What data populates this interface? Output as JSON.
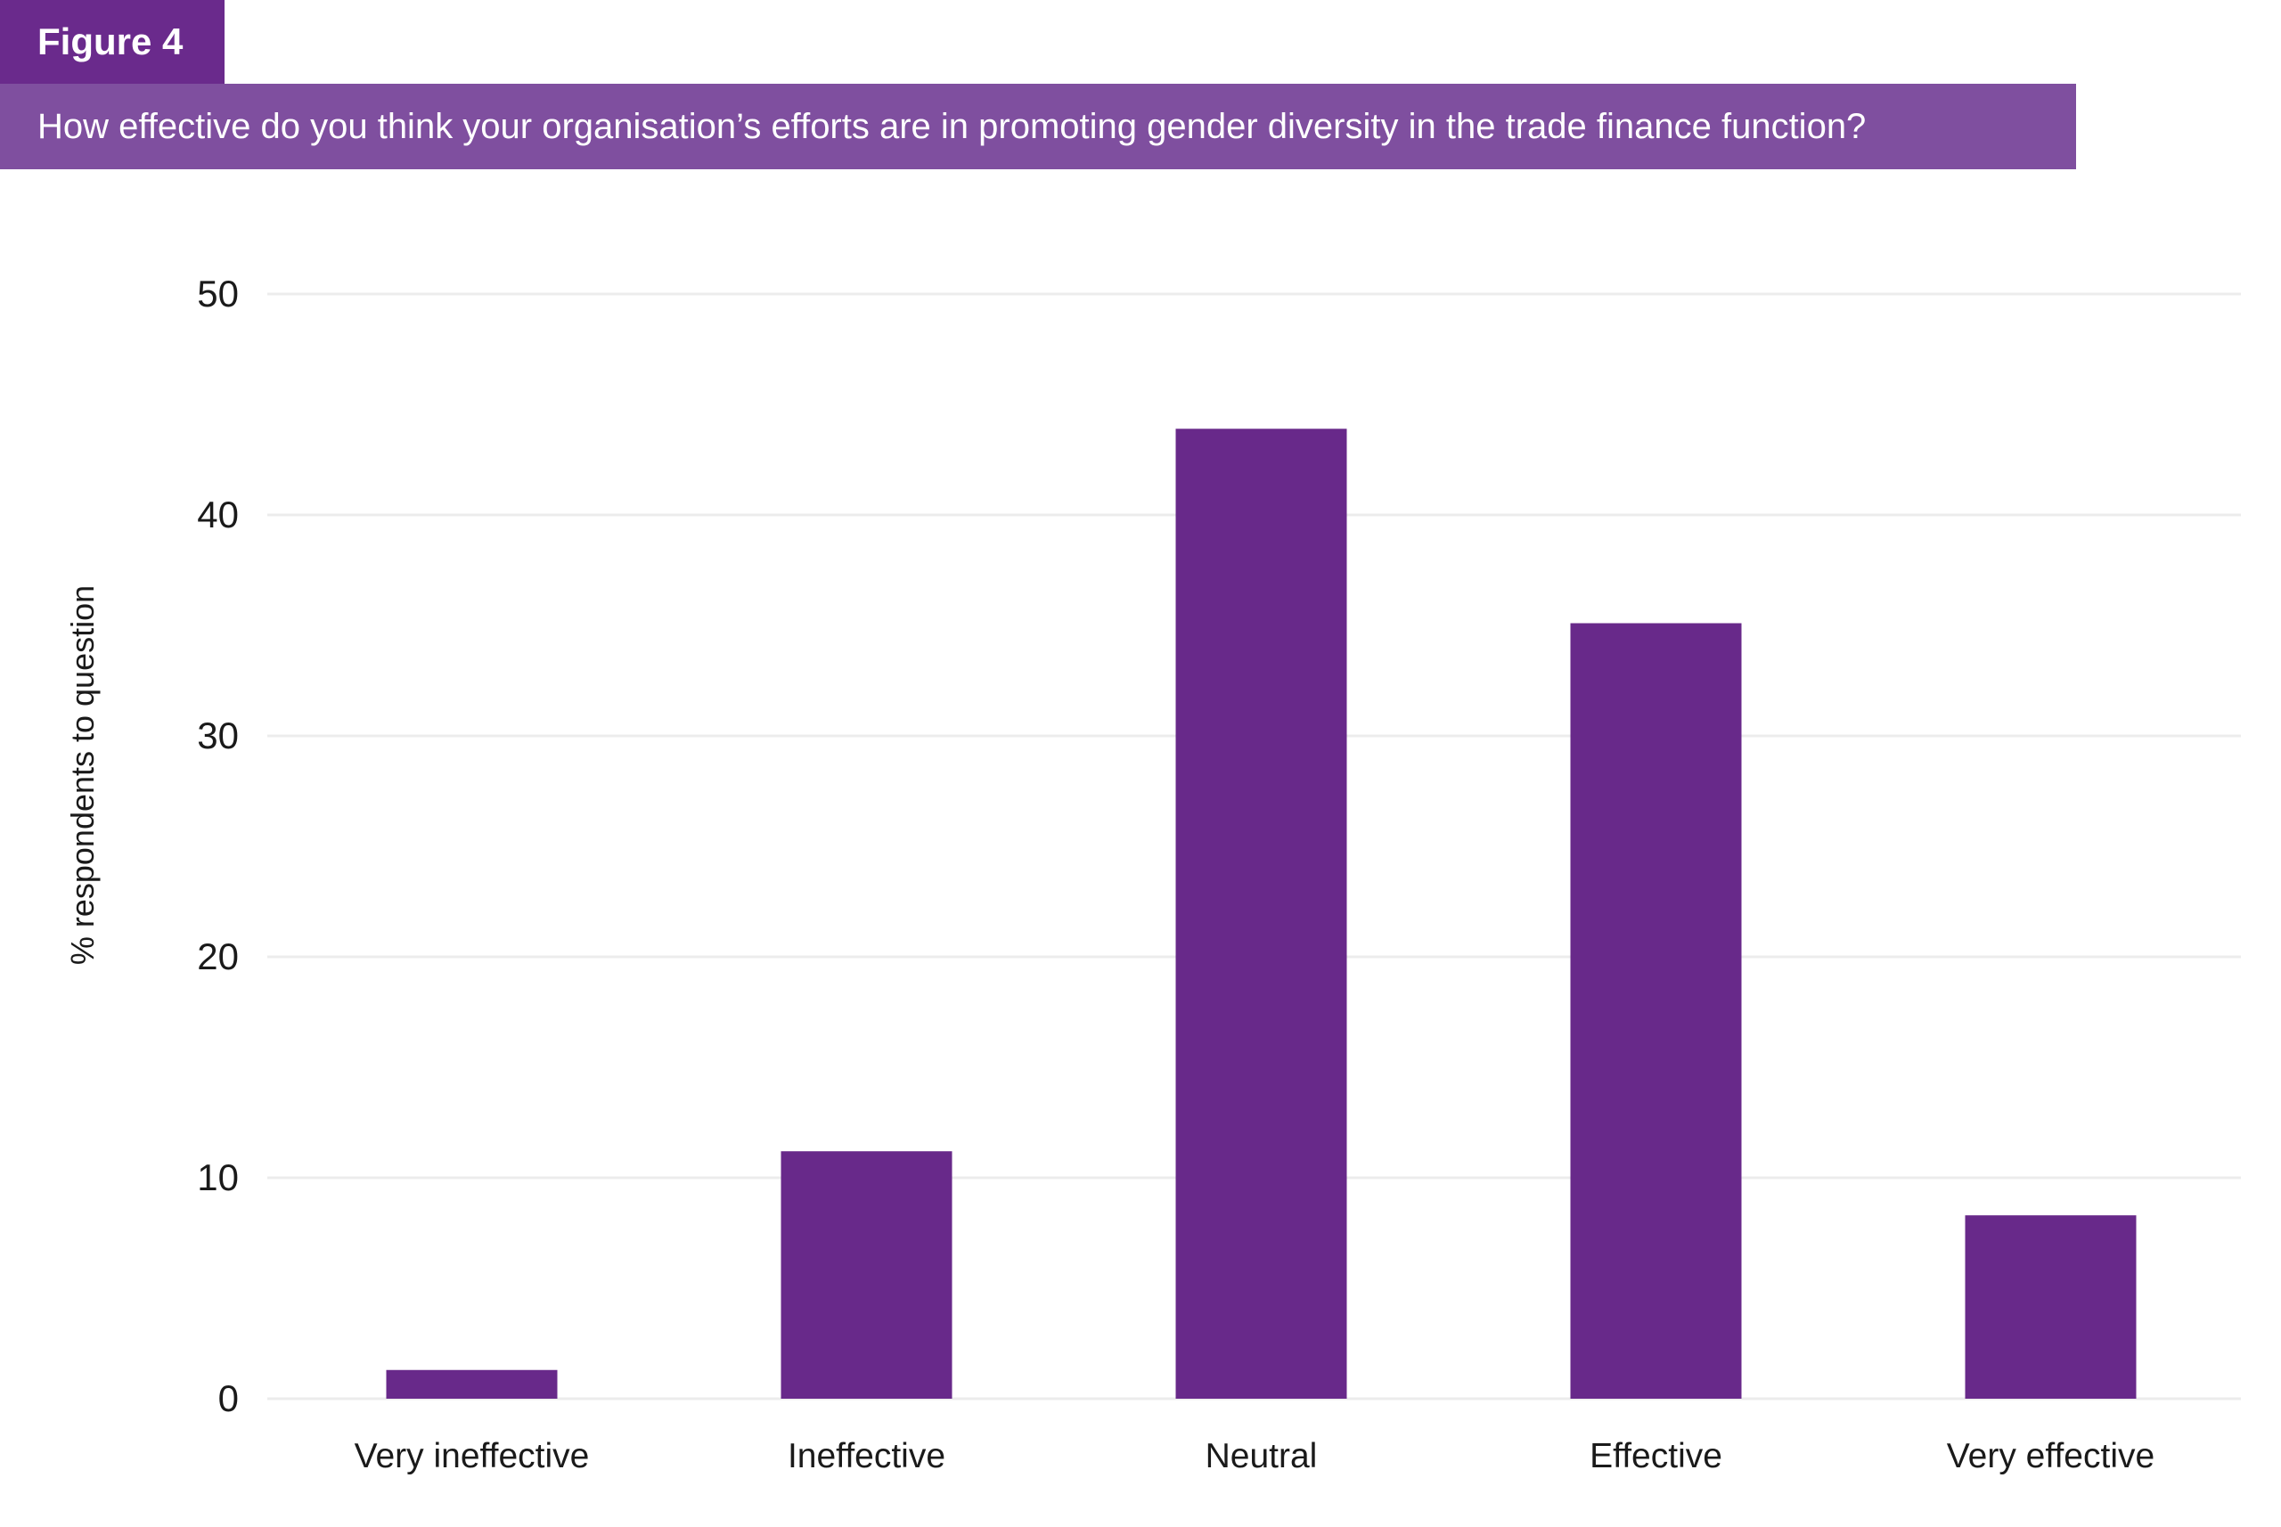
{
  "figure": {
    "label": "Figure 4",
    "question": "How effective do you think your organisation’s efforts are in promoting gender diversity in the trade finance function?"
  },
  "colors": {
    "label_bg": "#6a2a8c",
    "question_bg": "#7f4f9f",
    "bar": "#68298a",
    "grid": "#ececec",
    "text": "#1a1a1a"
  },
  "chart_data": {
    "type": "bar",
    "categories": [
      "Very ineffective",
      "Ineffective",
      "Neutral",
      "Effective",
      "Very effective"
    ],
    "values": [
      1.3,
      11.2,
      43.9,
      35.1,
      8.3
    ],
    "title": "How effective do you think your organisation’s efforts are in promoting gender diversity in the trade finance function?",
    "xlabel": "",
    "ylabel": "% respondents to question",
    "ylim": [
      0,
      50
    ],
    "yticks": [
      0,
      10,
      20,
      30,
      40,
      50
    ],
    "grid": true,
    "legend": "none"
  }
}
